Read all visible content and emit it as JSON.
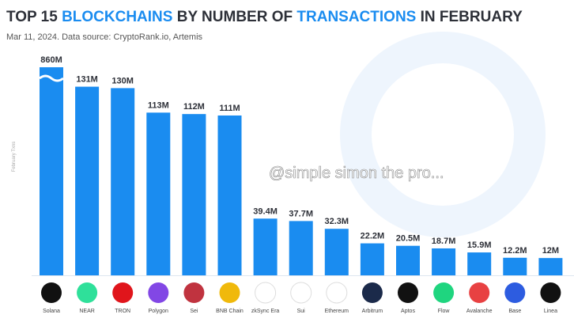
{
  "title_parts": [
    {
      "text": "TOP 15 ",
      "hl": false
    },
    {
      "text": "BLOCKCHAINS",
      "hl": true
    },
    {
      "text": " BY NUMBER OF ",
      "hl": false
    },
    {
      "text": "TRANSACTIONS",
      "hl": true
    },
    {
      "text": " IN FEBRUARY",
      "hl": false
    }
  ],
  "subtitle": "Mar 11, 2024. Data source: CryptoRank.io, Artemis",
  "watermark": "@simple simon the pro...",
  "colors": {
    "bar": "#1a8cf0",
    "title": "#2d3038",
    "accent": "#1a8cf0"
  },
  "chart_data": {
    "type": "bar",
    "title": "TOP 15 BLOCKCHAINS BY NUMBER OF TRANSACTIONS IN FEBRUARY",
    "ylabel": "February Txns",
    "xlabel": "",
    "unit": "M",
    "broken_axis": true,
    "grid": false,
    "categories": [
      "Solana",
      "NEAR",
      "TRON",
      "Polygon",
      "Sei",
      "BNB Chain",
      "zkSync Era",
      "Sui",
      "Ethereum",
      "Arbitrum",
      "Aptos",
      "Flow",
      "Avalanche",
      "Base",
      "Linea"
    ],
    "values": [
      860,
      131,
      130,
      113,
      112,
      111,
      39.4,
      37.7,
      32.3,
      22.2,
      20.5,
      18.7,
      15.9,
      12.2,
      12
    ],
    "data_labels": [
      "860M",
      "131M",
      "130M",
      "113M",
      "112M",
      "111M",
      "39.4M",
      "37.7M",
      "32.3M",
      "22.2M",
      "20.5M",
      "18.7M",
      "15.9M",
      "12.2M",
      "12M"
    ],
    "icons": [
      "solana-logo",
      "near-logo",
      "tron-logo",
      "polygon-logo",
      "sei-logo",
      "bnb-logo",
      "zksync-logo",
      "sui-logo",
      "ethereum-logo",
      "arbitrum-logo",
      "aptos-logo",
      "flow-logo",
      "avalanche-logo",
      "base-logo",
      "linea-logo"
    ],
    "icon_colors": [
      "#111111",
      "#2fe09a",
      "#e0151b",
      "#8247e5",
      "#c0333f",
      "#f0b90b",
      "#ffffff",
      "#ffffff",
      "#ffffff",
      "#1b2a4a",
      "#111111",
      "#1fd57f",
      "#e84142",
      "#2d5ce0",
      "#111111"
    ]
  }
}
